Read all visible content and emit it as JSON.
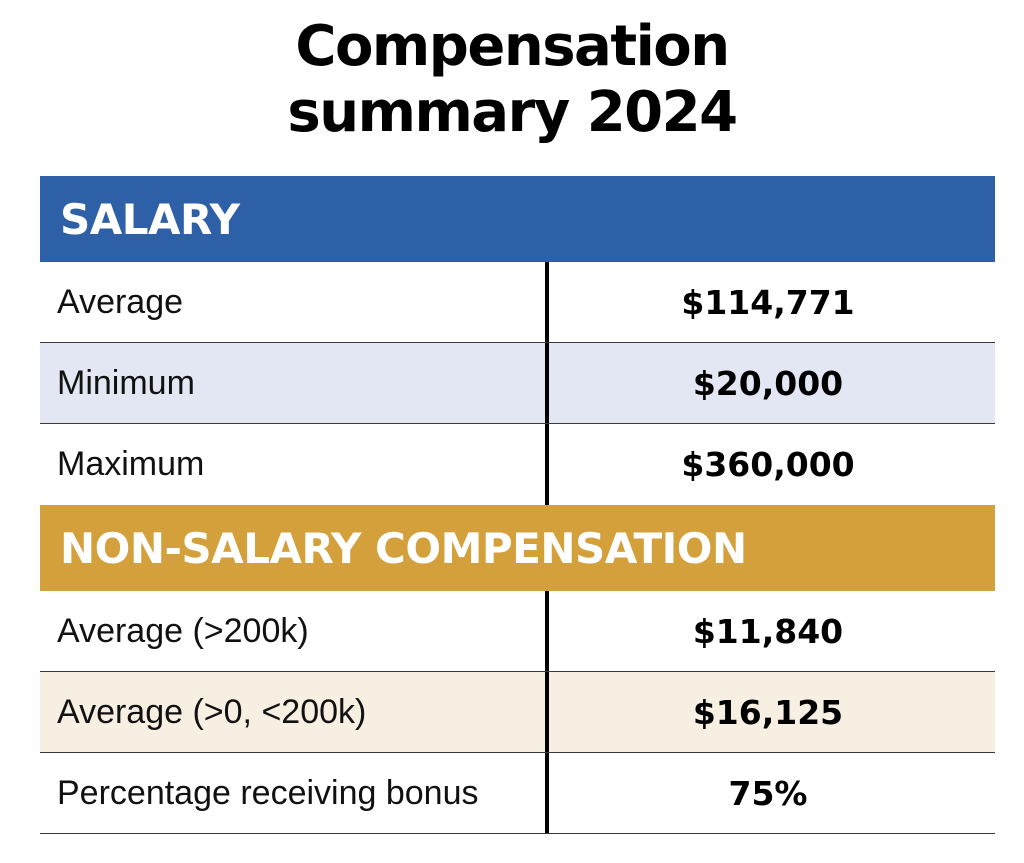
{
  "title_line1": "Compensation",
  "title_line2": "summary 2024",
  "chart_data": {
    "type": "table",
    "title": "Compensation summary 2024",
    "sections": [
      {
        "header": "SALARY",
        "color": "#2e60a8",
        "rows": [
          {
            "label": "Average",
            "value": "$114,771"
          },
          {
            "label": "Minimum",
            "value": "$20,000"
          },
          {
            "label": "Maximum",
            "value": "$360,000"
          }
        ]
      },
      {
        "header": "NON-SALARY COMPENSATION",
        "color": "#d3a03b",
        "rows": [
          {
            "label": "Average (>200k)",
            "value": "$11,840"
          },
          {
            "label": "Average (>0, <200k)",
            "value": "$16,125"
          },
          {
            "label": "Percentage receiving bonus",
            "value": "75%"
          }
        ]
      }
    ]
  }
}
